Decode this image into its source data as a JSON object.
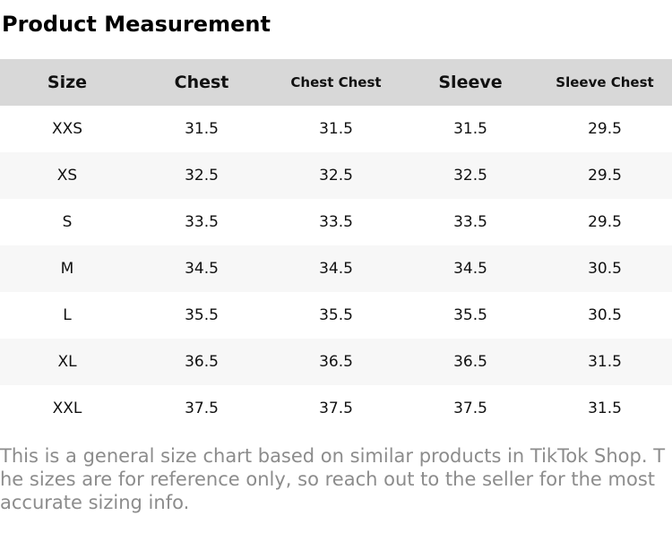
{
  "title": "Product Measurement",
  "table": {
    "columns": [
      "Size",
      "Chest",
      "Chest Chest",
      "Sleeve",
      "Sleeve Chest"
    ],
    "rows": [
      [
        "XXS",
        "31.5",
        "31.5",
        "31.5",
        "29.5"
      ],
      [
        "XS",
        "32.5",
        "32.5",
        "32.5",
        "29.5"
      ],
      [
        "S",
        "33.5",
        "33.5",
        "33.5",
        "29.5"
      ],
      [
        "M",
        "34.5",
        "34.5",
        "34.5",
        "30.5"
      ],
      [
        "L",
        "35.5",
        "35.5",
        "35.5",
        "30.5"
      ],
      [
        "XL",
        "36.5",
        "36.5",
        "36.5",
        "31.5"
      ],
      [
        "XXL",
        "37.5",
        "37.5",
        "37.5",
        "31.5"
      ]
    ]
  },
  "disclaimer": "This is a general size chart based on similar products in TikTok Shop. The sizes are for reference only, so reach out to the seller for the most accurate sizing info.",
  "colors": {
    "header_bg": "#d8d8d8",
    "row_alt_bg": "#f7f7f7",
    "disclaimer_text": "#8c8c8c"
  }
}
